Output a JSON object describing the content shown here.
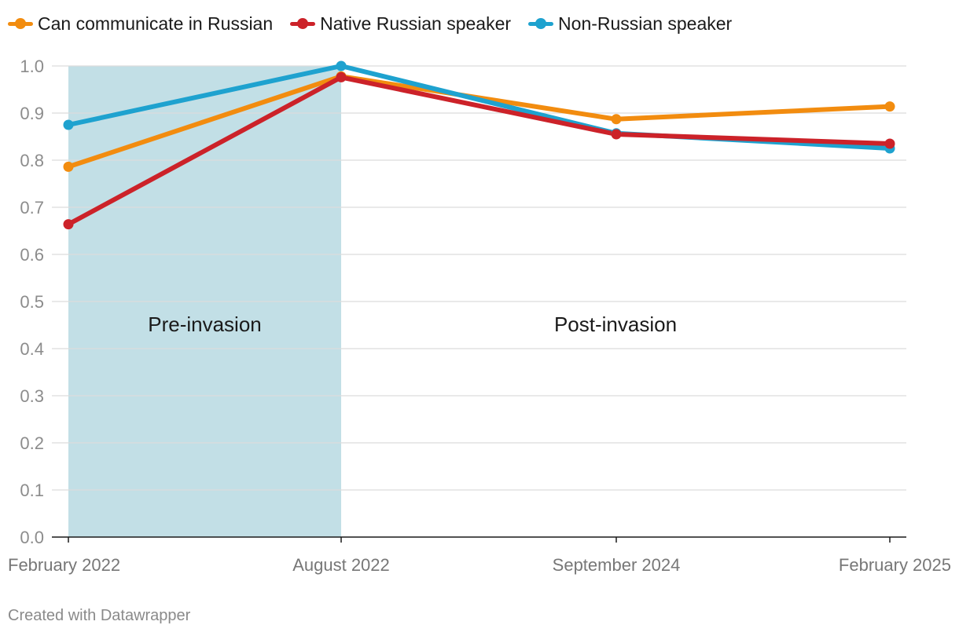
{
  "chart_data": {
    "type": "line",
    "title": "",
    "xlabel": "",
    "ylabel": "",
    "categories": [
      "February 2022",
      "August 2022",
      "September 2024",
      "February 2025"
    ],
    "ylim": [
      0,
      1.0
    ],
    "yticks": [
      "0.0",
      "0.1",
      "0.2",
      "0.3",
      "0.4",
      "0.5",
      "0.6",
      "0.7",
      "0.8",
      "0.9",
      "1.0"
    ],
    "grid": true,
    "legend_position": "top-left",
    "series": [
      {
        "name": "Can communicate in Russian",
        "color": "#f28c0f",
        "values": [
          0.786,
          0.978,
          0.887,
          0.914
        ]
      },
      {
        "name": "Non-Russian speaker",
        "color": "#1ea2cf",
        "values": [
          0.875,
          1.0,
          0.857,
          0.825
        ]
      },
      {
        "name": "Native Russian speaker",
        "color": "#cc2229",
        "values": [
          0.664,
          0.976,
          0.855,
          0.835
        ]
      }
    ],
    "legend_order": [
      0,
      2,
      1
    ],
    "shaded_region": {
      "from": "February 2022",
      "to": "August 2022",
      "color": "#c2dfe6"
    },
    "annotations": [
      {
        "text": "Pre-invasion",
        "category_from": 0,
        "category_to": 1,
        "y": 0.45
      },
      {
        "text": "Post-invasion",
        "category_from": 1,
        "category_to": 3,
        "y": 0.45
      }
    ]
  },
  "footer": {
    "credit": "Created with Datawrapper"
  }
}
